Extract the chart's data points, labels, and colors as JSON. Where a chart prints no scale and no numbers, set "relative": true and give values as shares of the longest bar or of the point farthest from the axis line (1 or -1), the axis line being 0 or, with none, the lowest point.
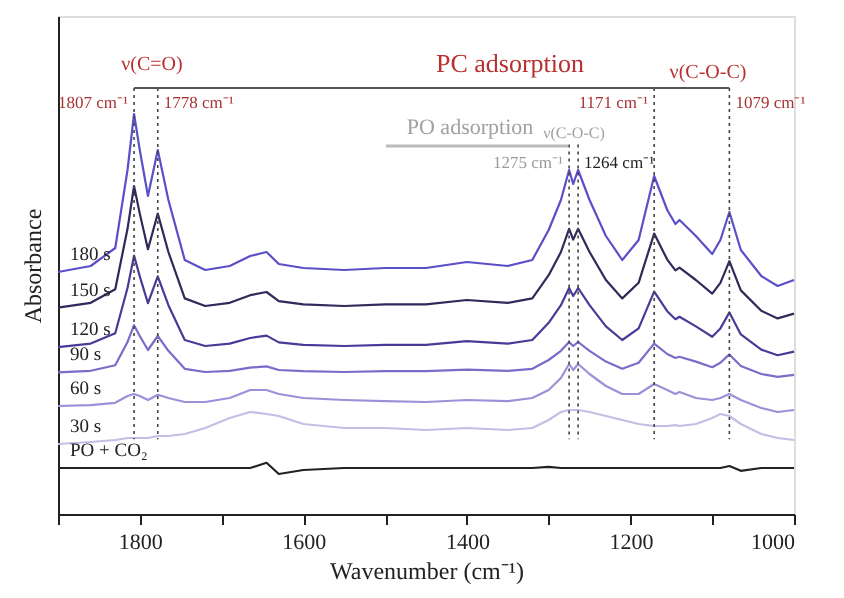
{
  "chart_data": {
    "type": "line",
    "relative": true,
    "xlabel": "Wavenumber (cm⁻¹)",
    "ylabel": "Absorbance",
    "xlim": [
      1900,
      1000
    ],
    "xticks": [
      {
        "value": 1900,
        "label": null
      },
      1800,
      {
        "value": 1700,
        "label": null
      },
      1600,
      {
        "value": 1500,
        "label": null
      },
      1400,
      {
        "value": 1300,
        "label": null
      },
      1200,
      {
        "value": 1100,
        "label": null
      },
      1000
    ],
    "x": [
      1900,
      1860,
      1830,
      1815,
      1807,
      1800,
      1790,
      1778,
      1765,
      1745,
      1720,
      1690,
      1665,
      1645,
      1630,
      1600,
      1550,
      1500,
      1450,
      1400,
      1350,
      1320,
      1300,
      1285,
      1275,
      1270,
      1264,
      1250,
      1230,
      1210,
      1190,
      1171,
      1155,
      1145,
      1140,
      1120,
      1100,
      1090,
      1079,
      1065,
      1040,
      1020,
      1000
    ],
    "series": [
      {
        "name": "180 s",
        "color": "#5b4fc9",
        "values": [
          0.605,
          0.62,
          0.665,
          0.86,
          1.0,
          0.91,
          0.795,
          0.91,
          0.785,
          0.635,
          0.61,
          0.62,
          0.645,
          0.655,
          0.625,
          0.615,
          0.61,
          0.615,
          0.615,
          0.63,
          0.62,
          0.635,
          0.71,
          0.785,
          0.86,
          0.825,
          0.86,
          0.785,
          0.695,
          0.635,
          0.685,
          0.845,
          0.76,
          0.725,
          0.735,
          0.695,
          0.65,
          0.685,
          0.755,
          0.66,
          0.595,
          0.57,
          0.585
        ]
      },
      {
        "name": "150 s",
        "color": "#2e2a5a",
        "values": [
          0.516,
          0.528,
          0.562,
          0.713,
          0.82,
          0.751,
          0.662,
          0.751,
          0.655,
          0.539,
          0.52,
          0.528,
          0.547,
          0.555,
          0.532,
          0.524,
          0.52,
          0.524,
          0.524,
          0.535,
          0.528,
          0.539,
          0.597,
          0.655,
          0.713,
          0.686,
          0.713,
          0.655,
          0.585,
          0.539,
          0.578,
          0.701,
          0.636,
          0.609,
          0.616,
          0.585,
          0.551,
          0.578,
          0.632,
          0.559,
          0.508,
          0.489,
          0.501
        ]
      },
      {
        "name": "120 s",
        "color": "#463c98",
        "values": [
          0.417,
          0.426,
          0.452,
          0.565,
          0.646,
          0.594,
          0.527,
          0.594,
          0.522,
          0.435,
          0.42,
          0.426,
          0.44,
          0.446,
          0.429,
          0.423,
          0.42,
          0.423,
          0.423,
          0.432,
          0.426,
          0.435,
          0.478,
          0.522,
          0.565,
          0.545,
          0.565,
          0.522,
          0.469,
          0.435,
          0.464,
          0.556,
          0.507,
          0.487,
          0.493,
          0.469,
          0.443,
          0.464,
          0.504,
          0.449,
          0.411,
          0.397,
          0.406
        ]
      },
      {
        "name": "90 s",
        "color": "#7a6cc8",
        "values": [
          0.354,
          0.358,
          0.372,
          0.43,
          0.472,
          0.445,
          0.41,
          0.445,
          0.408,
          0.363,
          0.355,
          0.358,
          0.366,
          0.369,
          0.36,
          0.357,
          0.355,
          0.357,
          0.357,
          0.361,
          0.358,
          0.363,
          0.385,
          0.408,
          0.43,
          0.42,
          0.43,
          0.408,
          0.381,
          0.363,
          0.378,
          0.426,
          0.4,
          0.39,
          0.393,
          0.381,
          0.367,
          0.378,
          0.399,
          0.37,
          0.35,
          0.343,
          0.348
        ]
      },
      {
        "name": "60 s",
        "color": "#9d90d8",
        "values": [
          0.27,
          0.272,
          0.278,
          0.295,
          0.3,
          0.295,
          0.285,
          0.298,
          0.29,
          0.28,
          0.28,
          0.29,
          0.31,
          0.31,
          0.3,
          0.29,
          0.285,
          0.282,
          0.28,
          0.285,
          0.282,
          0.29,
          0.31,
          0.34,
          0.375,
          0.36,
          0.375,
          0.35,
          0.32,
          0.3,
          0.3,
          0.325,
          0.31,
          0.3,
          0.305,
          0.29,
          0.285,
          0.29,
          0.3,
          0.285,
          0.265,
          0.255,
          0.26
        ]
      },
      {
        "name": "30 s",
        "color": "#c5bde6",
        "values": [
          0.175,
          0.18,
          0.185,
          0.19,
          0.19,
          0.19,
          0.19,
          0.195,
          0.195,
          0.2,
          0.215,
          0.24,
          0.255,
          0.25,
          0.245,
          0.225,
          0.215,
          0.215,
          0.21,
          0.215,
          0.21,
          0.215,
          0.235,
          0.255,
          0.26,
          0.26,
          0.26,
          0.255,
          0.245,
          0.235,
          0.225,
          0.22,
          0.22,
          0.222,
          0.22,
          0.225,
          0.24,
          0.25,
          0.245,
          0.225,
          0.2,
          0.19,
          0.185
        ]
      },
      {
        "name": "PO + CO₂",
        "color": "#222222",
        "values": [
          0.115,
          0.115,
          0.115,
          0.115,
          0.115,
          0.115,
          0.115,
          0.115,
          0.115,
          0.115,
          0.115,
          0.115,
          0.115,
          0.128,
          0.1,
          0.11,
          0.115,
          0.115,
          0.115,
          0.115,
          0.115,
          0.115,
          0.118,
          0.115,
          0.115,
          0.115,
          0.115,
          0.115,
          0.115,
          0.115,
          0.115,
          0.115,
          0.115,
          0.115,
          0.115,
          0.115,
          0.115,
          0.115,
          0.12,
          0.108,
          0.115,
          0.115,
          0.115
        ]
      }
    ],
    "ref_lines": [
      {
        "axis": "x",
        "value": 1807,
        "label": "1807 cm⁻¹",
        "color": "#444444",
        "line_style": "dotted"
      },
      {
        "axis": "x",
        "value": 1778,
        "label": "1778 cm⁻¹",
        "color": "#444444",
        "line_style": "dotted"
      },
      {
        "axis": "x",
        "value": 1275,
        "label": "1275 cm⁻¹",
        "color": "#444444",
        "line_style": "dotted"
      },
      {
        "axis": "x",
        "value": 1264,
        "label": "1264 cm⁻¹",
        "color": "#444444",
        "line_style": "dotted"
      },
      {
        "axis": "x",
        "value": 1171,
        "label": "1171 cm⁻¹",
        "color": "#444444",
        "line_style": "dotted"
      },
      {
        "axis": "x",
        "value": 1079,
        "label": "1079 cm⁻¹",
        "color": "#444444",
        "line_style": "dotted"
      }
    ],
    "annotations": [
      "PC adsorption",
      "PO adsorption",
      "ν(C=O)",
      "ν(C-O-C)",
      "ν(C-O-C)"
    ],
    "grid": false,
    "line_style": "solid",
    "marker": "none"
  }
}
